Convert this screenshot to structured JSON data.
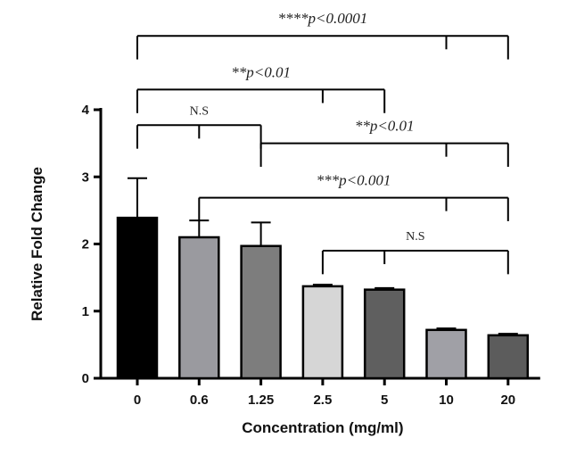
{
  "chart_data": {
    "type": "bar",
    "title": "",
    "xlabel": "Concentration (mg/ml)",
    "ylabel": "Relative Fold Change",
    "ylim": [
      0,
      4
    ],
    "yticks": [
      "0",
      "1",
      "2",
      "3",
      "4"
    ],
    "categories": [
      "0",
      "0.6",
      "1.25",
      "2.5",
      "5",
      "10",
      "20"
    ],
    "values": [
      2.39,
      2.1,
      1.97,
      1.37,
      1.32,
      0.72,
      0.64
    ],
    "errors": [
      0.59,
      0.25,
      0.35,
      0.02,
      0.01,
      0.01,
      0.01
    ],
    "colors": [
      "#000000",
      "#9a9a9f",
      "#7d7d7d",
      "#d6d6d6",
      "#5f5f5f",
      "#a0a0a6",
      "#5c5c5c"
    ],
    "annotations": [
      {
        "label": "****p<0.0001",
        "from": 0,
        "to": 6,
        "mid": 5,
        "level": 5.1
      },
      {
        "label": "**p<0.01",
        "from": 0,
        "to": 4,
        "mid": 3,
        "level": 4.3
      },
      {
        "label": "N.S",
        "from": 0,
        "to": 2,
        "mid": 1,
        "level": 3.77
      },
      {
        "label": "**p<0.01",
        "from": 2,
        "to": 6,
        "mid": 5,
        "level": 3.5
      },
      {
        "label": "***p<0.001",
        "from": 1,
        "to": 6,
        "mid": 5,
        "level": 2.69
      },
      {
        "label": "N.S",
        "from": 3,
        "to": 6,
        "mid": 4,
        "level": 1.9
      }
    ]
  }
}
